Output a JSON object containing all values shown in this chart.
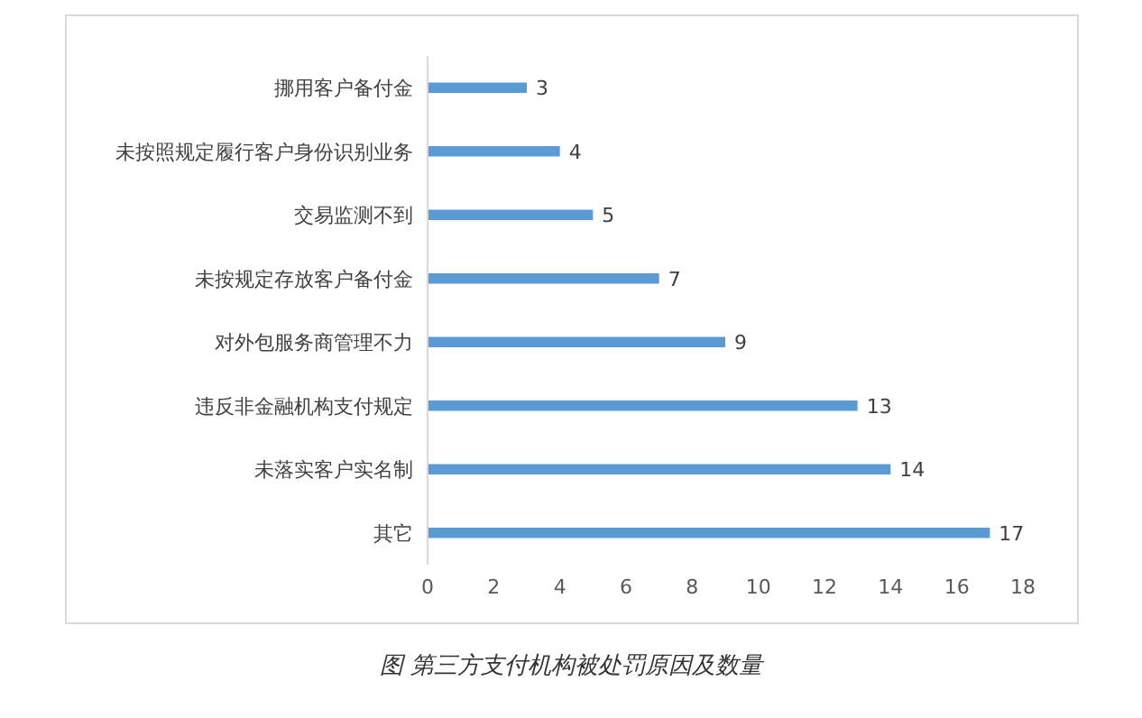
{
  "chart_data": {
    "type": "bar",
    "orientation": "horizontal",
    "categories": [
      "挪用客户备付金",
      "未按照规定履行客户身份识别业务",
      "交易监测不到",
      "未按规定存放客户备付金",
      "对外包服务商管理不力",
      "违反非金融机构支付规定",
      "未落实客户实名制",
      "其它"
    ],
    "values": [
      3,
      4,
      5,
      7,
      9,
      13,
      14,
      17
    ],
    "color": "#5b9bd5",
    "xlim": [
      0,
      18
    ],
    "xticks": [
      0,
      2,
      4,
      6,
      8,
      10,
      12,
      14,
      16,
      18
    ],
    "grid": false,
    "legend": false,
    "data_labels": true,
    "annotations": [
      "图 第三方支付机构被处罚原因及数量"
    ]
  }
}
